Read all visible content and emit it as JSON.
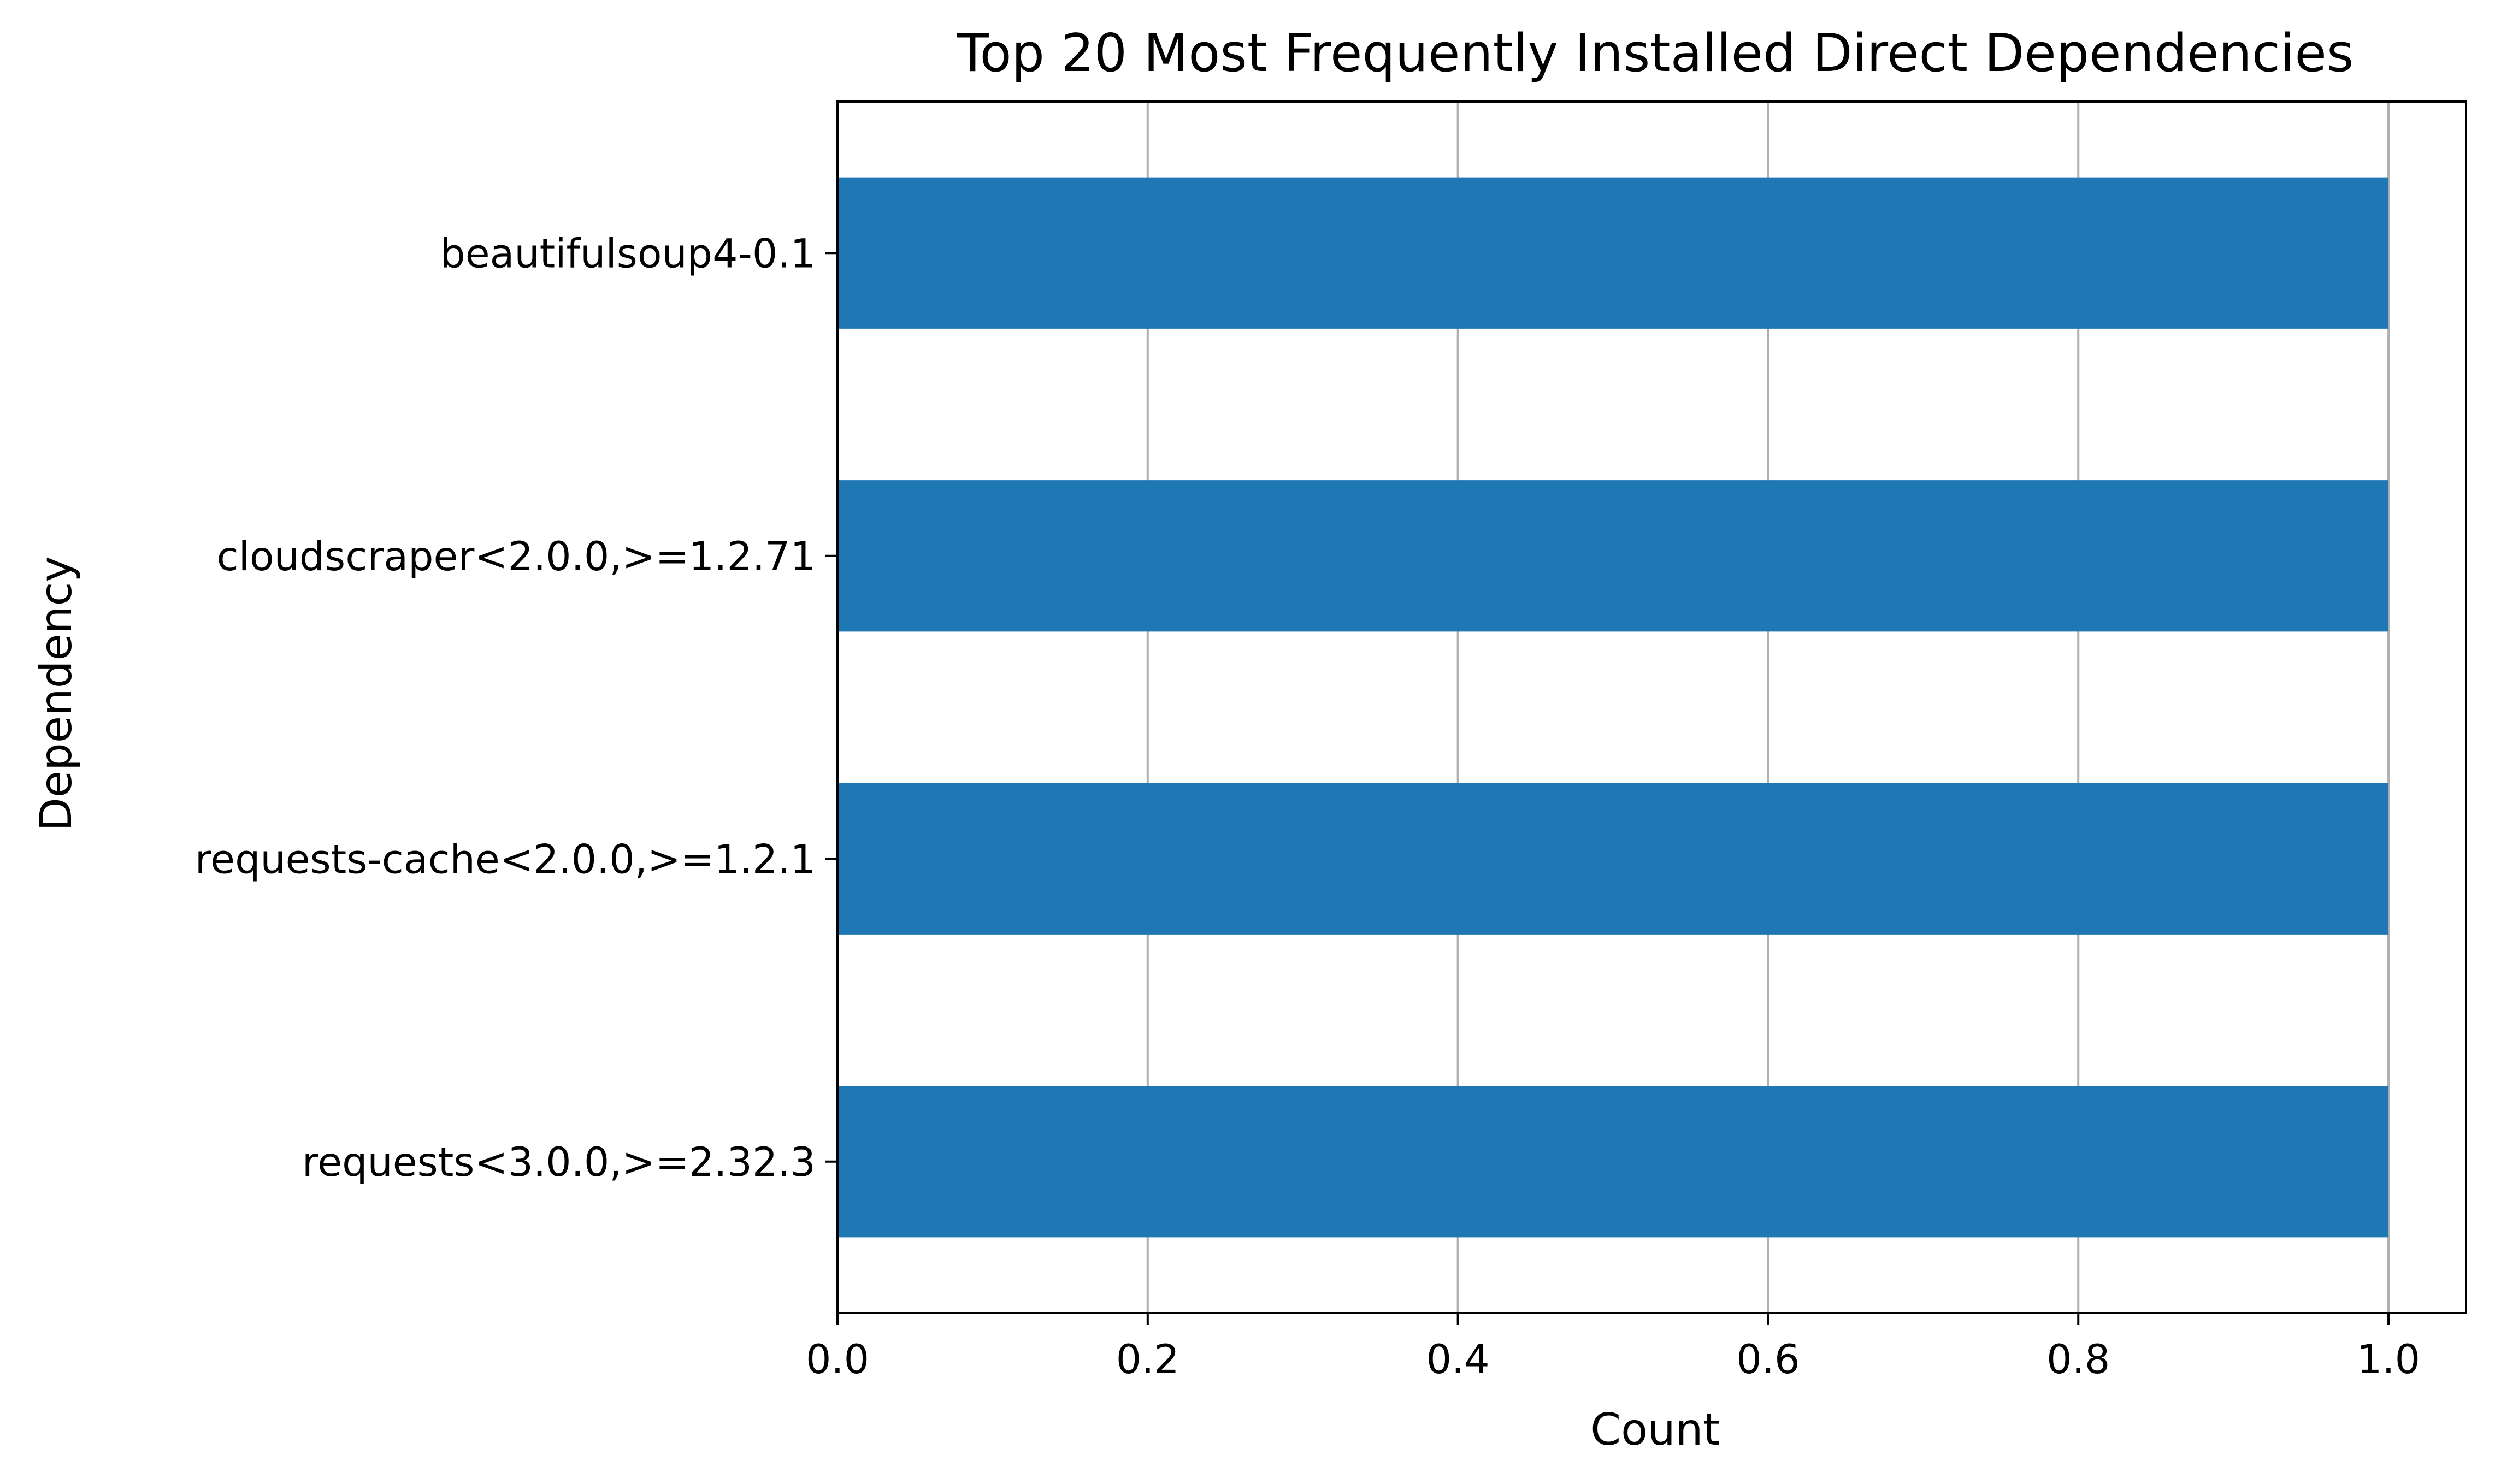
{
  "chart_data": {
    "type": "bar",
    "orientation": "horizontal",
    "title": "Top 20 Most Frequently Installed Direct Dependencies",
    "xlabel": "Count",
    "ylabel": "Dependency",
    "categories": [
      "beautifulsoup4-0.1",
      "cloudscraper<2.0.0,>=1.2.71",
      "requests-cache<2.0.0,>=1.2.1",
      "requests<3.0.0,>=2.32.3"
    ],
    "values": [
      1,
      1,
      1,
      1
    ],
    "xlim": [
      0,
      1.05
    ],
    "xticks": [
      "0.0",
      "0.2",
      "0.4",
      "0.6",
      "0.8",
      "1.0"
    ],
    "grid": "x-axis",
    "bar_color": "#1f77b4",
    "legend": "none"
  }
}
